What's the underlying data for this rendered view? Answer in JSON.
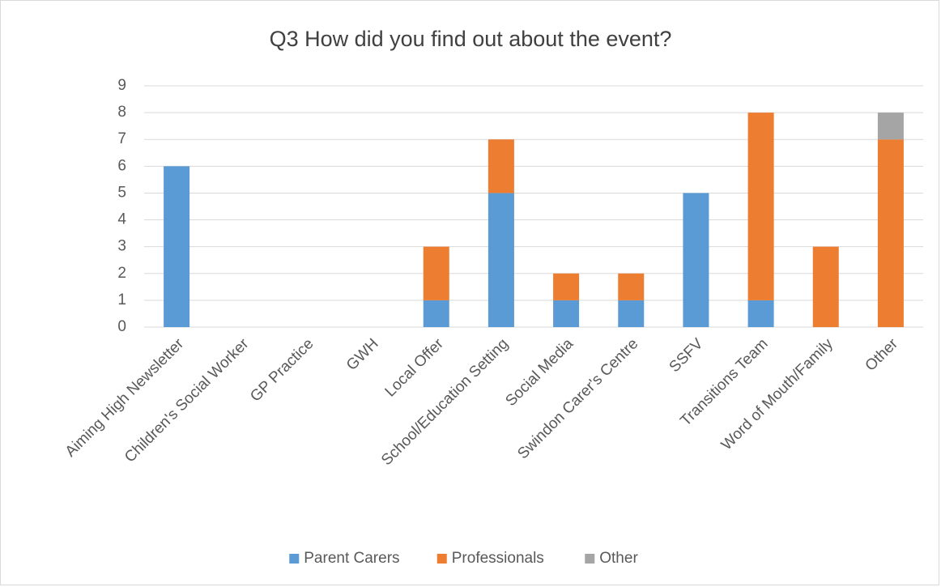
{
  "chart_data": {
    "type": "stacked_bar",
    "title": "Q3 How did you find out about the event?",
    "categories": [
      "Aiming High Newsletter",
      "Children's Social Worker",
      "GP Practice",
      "GWH",
      "Local Offer",
      "School/Education Setting",
      "Social Media",
      "Swindon Carer's Centre",
      "SSFV",
      "Transitions Team",
      "Word of Mouth/Family",
      "Other"
    ],
    "series": [
      {
        "name": "Parent Carers",
        "color": "#5b9bd5",
        "values": [
          6,
          0,
          0,
          0,
          1,
          5,
          1,
          1,
          5,
          1,
          0,
          0
        ]
      },
      {
        "name": "Professionals",
        "color": "#ed7d31",
        "values": [
          0,
          0,
          0,
          0,
          2,
          2,
          1,
          1,
          0,
          7,
          3,
          7
        ]
      },
      {
        "name": "Other",
        "color": "#a5a5a5",
        "values": [
          0,
          0,
          0,
          0,
          0,
          0,
          0,
          0,
          0,
          0,
          0,
          1
        ]
      }
    ],
    "ylim": [
      0,
      9
    ],
    "yticks": [
      0,
      1,
      2,
      3,
      4,
      5,
      6,
      7,
      8,
      9
    ],
    "grid": true,
    "legend": "bottom"
  }
}
